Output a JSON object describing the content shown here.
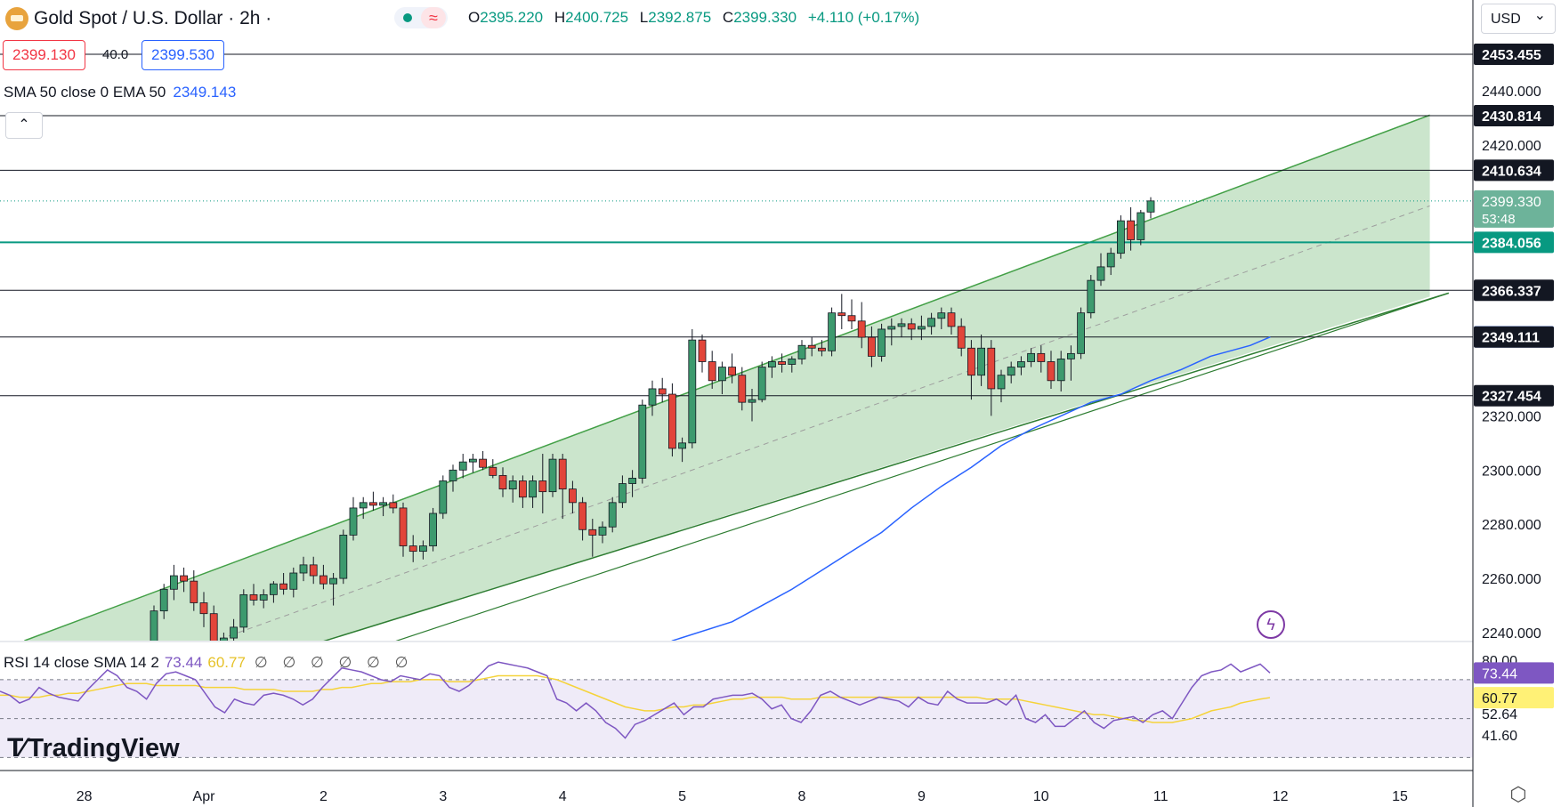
{
  "header": {
    "symbol_title": "Gold Spot / U.S. Dollar · 2h ·",
    "ohlc": {
      "open_label": "O",
      "open": "2395.220",
      "high_label": "H",
      "high": "2400.725",
      "low_label": "L",
      "low": "2392.875",
      "close_label": "C",
      "close": "2399.330",
      "change": "+4.110 (+0.17%)"
    },
    "sell_price": "2399.130",
    "spread": "40.0",
    "buy_price": "2399.530",
    "indicator_label": "SMA 50 close 0 EMA 50",
    "indicator_value": "2349.143",
    "currency": "USD"
  },
  "rsi": {
    "label": "RSI 14 close SMA 14 2",
    "value": "73.44",
    "sma_value": "60.77",
    "empty_values": "∅ ∅ ∅ ∅ ∅ ∅",
    "axis": [
      "80.00",
      "52.64",
      "41.60"
    ],
    "tags": {
      "rsi": "73.44",
      "sma": "60.77"
    },
    "series": [
      64,
      62,
      58,
      60,
      66,
      63,
      61,
      60,
      59,
      65,
      70,
      75,
      72,
      66,
      64,
      60,
      68,
      73,
      74,
      72,
      70,
      63,
      56,
      53,
      60,
      58,
      57,
      62,
      63,
      62,
      60,
      57,
      60,
      66,
      71,
      76,
      75,
      74,
      72,
      70,
      69,
      72,
      71,
      70,
      73,
      72,
      66,
      64,
      67,
      72,
      77,
      79,
      78,
      77,
      76,
      74,
      72,
      60,
      58,
      54,
      58,
      54,
      48,
      45,
      40,
      47,
      49,
      52,
      55,
      58,
      52,
      56,
      56,
      60,
      61,
      62,
      62,
      63,
      60,
      55,
      57,
      50,
      48,
      54,
      62,
      64,
      61,
      59,
      57,
      59,
      61,
      60,
      59,
      56,
      61,
      58,
      57,
      64,
      60,
      58,
      58,
      58,
      60,
      57,
      62,
      50,
      48,
      52,
      46,
      46,
      50,
      54,
      48,
      45,
      49,
      50,
      51,
      48,
      52,
      54,
      50,
      58,
      66,
      72,
      74,
      75,
      78,
      74,
      76,
      78,
      73.44
    ],
    "sma_series": [
      62,
      62,
      61,
      61,
      61,
      62,
      62,
      63,
      63,
      64,
      65,
      66,
      67,
      68,
      68,
      68,
      67,
      67,
      67,
      67,
      67,
      66,
      66,
      66,
      66,
      65,
      65,
      65,
      65,
      64,
      64,
      64,
      64,
      65,
      65,
      66,
      66,
      67,
      68,
      68,
      69,
      69,
      69,
      70,
      70,
      70,
      69,
      69,
      69,
      70,
      71,
      72,
      72,
      72,
      72,
      72,
      71,
      70,
      68,
      66,
      64,
      62,
      60,
      58,
      56,
      55,
      54,
      54,
      55,
      56,
      56,
      57,
      57,
      58,
      59,
      60,
      60,
      61,
      61,
      61,
      61,
      60,
      60,
      60,
      61,
      61,
      61,
      61,
      61,
      61,
      61,
      61,
      61,
      61,
      61,
      61,
      61,
      61,
      61,
      61,
      61,
      60,
      60,
      60,
      60,
      59,
      58,
      57,
      56,
      55,
      54,
      53,
      52,
      52,
      51,
      50,
      49,
      49,
      48,
      48,
      48,
      49,
      50,
      52,
      54,
      55,
      56,
      58,
      59,
      60,
      60.77
    ]
  },
  "chart_data": {
    "type": "candlestick",
    "title": "Gold Spot / U.S. Dollar · 2h",
    "ylim": [
      2232,
      2458
    ],
    "y_ticks": [
      "2440.000",
      "2420.000",
      "2320.000",
      "2300.000",
      "2280.000",
      "2260.000",
      "2240.000"
    ],
    "x_ticks": [
      {
        "label": "28",
        "i": -7
      },
      {
        "label": "Apr",
        "i": 5
      },
      {
        "label": "2",
        "i": 17
      },
      {
        "label": "3",
        "i": 29
      },
      {
        "label": "4",
        "i": 41
      },
      {
        "label": "5",
        "i": 53
      },
      {
        "label": "8",
        "i": 65
      },
      {
        "label": "9",
        "i": 77
      },
      {
        "label": "10",
        "i": 89
      },
      {
        "label": "11",
        "i": 101
      },
      {
        "label": "12",
        "i": 113
      },
      {
        "label": "15",
        "i": 125
      }
    ],
    "candles": [
      [
        2233,
        2250,
        2230,
        2248
      ],
      [
        2248,
        2258,
        2245,
        2256
      ],
      [
        2256,
        2265,
        2252,
        2261
      ],
      [
        2261,
        2264,
        2255,
        2259
      ],
      [
        2259,
        2263,
        2248,
        2251
      ],
      [
        2251,
        2255,
        2242,
        2247
      ],
      [
        2247,
        2250,
        2233,
        2235
      ],
      [
        2235,
        2240,
        2230,
        2238
      ],
      [
        2238,
        2245,
        2236,
        2242
      ],
      [
        2242,
        2256,
        2240,
        2254
      ],
      [
        2254,
        2258,
        2250,
        2252
      ],
      [
        2252,
        2256,
        2249,
        2254
      ],
      [
        2254,
        2259,
        2251,
        2258
      ],
      [
        2258,
        2262,
        2254,
        2256
      ],
      [
        2256,
        2264,
        2253,
        2262
      ],
      [
        2262,
        2268,
        2259,
        2265
      ],
      [
        2265,
        2268,
        2258,
        2261
      ],
      [
        2261,
        2265,
        2256,
        2258
      ],
      [
        2258,
        2262,
        2250,
        2260
      ],
      [
        2260,
        2278,
        2258,
        2276
      ],
      [
        2276,
        2290,
        2274,
        2286
      ],
      [
        2286,
        2290,
        2282,
        2288
      ],
      [
        2288,
        2292,
        2285,
        2287
      ],
      [
        2287,
        2290,
        2283,
        2288
      ],
      [
        2288,
        2291,
        2284,
        2286
      ],
      [
        2286,
        2288,
        2268,
        2272
      ],
      [
        2272,
        2276,
        2266,
        2270
      ],
      [
        2270,
        2274,
        2267,
        2272
      ],
      [
        2272,
        2286,
        2270,
        2284
      ],
      [
        2284,
        2298,
        2282,
        2296
      ],
      [
        2296,
        2302,
        2292,
        2300
      ],
      [
        2300,
        2306,
        2297,
        2303
      ],
      [
        2303,
        2306,
        2299,
        2304
      ],
      [
        2304,
        2307,
        2300,
        2301
      ],
      [
        2301,
        2304,
        2297,
        2298
      ],
      [
        2298,
        2301,
        2290,
        2293
      ],
      [
        2293,
        2298,
        2288,
        2296
      ],
      [
        2296,
        2298,
        2286,
        2290
      ],
      [
        2290,
        2298,
        2286,
        2296
      ],
      [
        2296,
        2306,
        2284,
        2292
      ],
      [
        2292,
        2306,
        2290,
        2304
      ],
      [
        2304,
        2306,
        2282,
        2293
      ],
      [
        2293,
        2296,
        2284,
        2288
      ],
      [
        2288,
        2290,
        2274,
        2278
      ],
      [
        2278,
        2282,
        2268,
        2276
      ],
      [
        2276,
        2281,
        2273,
        2279
      ],
      [
        2279,
        2290,
        2277,
        2288
      ],
      [
        2288,
        2298,
        2286,
        2295
      ],
      [
        2295,
        2300,
        2290,
        2297
      ],
      [
        2297,
        2326,
        2295,
        2324
      ],
      [
        2324,
        2333,
        2320,
        2330
      ],
      [
        2330,
        2334,
        2325,
        2328
      ],
      [
        2328,
        2332,
        2305,
        2308
      ],
      [
        2308,
        2312,
        2303,
        2310
      ],
      [
        2310,
        2352,
        2308,
        2348
      ],
      [
        2348,
        2350,
        2336,
        2340
      ],
      [
        2340,
        2344,
        2330,
        2333
      ],
      [
        2333,
        2340,
        2328,
        2338
      ],
      [
        2338,
        2343,
        2332,
        2335
      ],
      [
        2335,
        2338,
        2322,
        2325
      ],
      [
        2325,
        2330,
        2318,
        2326
      ],
      [
        2326,
        2340,
        2325,
        2338
      ],
      [
        2338,
        2342,
        2334,
        2340
      ],
      [
        2340,
        2343,
        2336,
        2339
      ],
      [
        2339,
        2342,
        2336,
        2341
      ],
      [
        2341,
        2348,
        2339,
        2346
      ],
      [
        2346,
        2349,
        2342,
        2345
      ],
      [
        2345,
        2348,
        2342,
        2344
      ],
      [
        2344,
        2360,
        2342,
        2358
      ],
      [
        2358,
        2365,
        2352,
        2357
      ],
      [
        2357,
        2363,
        2352,
        2355
      ],
      [
        2355,
        2362,
        2345,
        2349
      ],
      [
        2349,
        2353,
        2338,
        2342
      ],
      [
        2342,
        2354,
        2340,
        2352
      ],
      [
        2352,
        2356,
        2346,
        2353
      ],
      [
        2353,
        2356,
        2349,
        2354
      ],
      [
        2354,
        2356,
        2348,
        2352
      ],
      [
        2352,
        2357,
        2348,
        2353
      ],
      [
        2353,
        2358,
        2350,
        2356
      ],
      [
        2356,
        2360,
        2352,
        2358
      ],
      [
        2358,
        2360,
        2350,
        2353
      ],
      [
        2353,
        2356,
        2342,
        2345
      ],
      [
        2345,
        2348,
        2326,
        2335
      ],
      [
        2335,
        2350,
        2331,
        2345
      ],
      [
        2345,
        2348,
        2320,
        2330
      ],
      [
        2330,
        2337,
        2325,
        2335
      ],
      [
        2335,
        2340,
        2332,
        2338
      ],
      [
        2338,
        2342,
        2335,
        2340
      ],
      [
        2340,
        2345,
        2338,
        2343
      ],
      [
        2343,
        2346,
        2336,
        2340
      ],
      [
        2340,
        2344,
        2330,
        2333
      ],
      [
        2333,
        2344,
        2329,
        2341
      ],
      [
        2341,
        2346,
        2333,
        2343
      ],
      [
        2343,
        2360,
        2341,
        2358
      ],
      [
        2358,
        2372,
        2356,
        2370
      ],
      [
        2370,
        2380,
        2368,
        2375
      ],
      [
        2375,
        2382,
        2372,
        2380
      ],
      [
        2380,
        2394,
        2378,
        2392
      ],
      [
        2392,
        2397,
        2381,
        2385
      ],
      [
        2385,
        2396,
        2383,
        2395
      ],
      [
        2395.22,
        2400.725,
        2392.875,
        2399.33
      ]
    ],
    "ema50": [
      [
        44,
        2218
      ],
      [
        52,
        2237
      ],
      [
        58,
        2244
      ],
      [
        61,
        2250
      ],
      [
        64,
        2256
      ],
      [
        67,
        2263
      ],
      [
        70,
        2270
      ],
      [
        73,
        2277
      ],
      [
        76,
        2286
      ],
      [
        79,
        2294
      ],
      [
        82,
        2301
      ],
      [
        85,
        2309
      ],
      [
        88,
        2315
      ],
      [
        91,
        2320
      ],
      [
        94,
        2325
      ],
      [
        97,
        2328
      ],
      [
        100,
        2333
      ],
      [
        103,
        2337
      ],
      [
        106,
        2342
      ],
      [
        108,
        2344
      ],
      [
        110,
        2346
      ],
      [
        112,
        2349.143
      ]
    ],
    "channel": {
      "upper_start": [
        -13,
        2237
      ],
      "upper_end": [
        128,
        2431
      ],
      "lower_start": [
        4,
        2222
      ],
      "lower_end": [
        129,
        2364
      ]
    },
    "levels": [
      {
        "value": 2453.455,
        "label": "2453.455",
        "color": "#131722"
      },
      {
        "value": 2430.814,
        "label": "2430.814",
        "color": "#131722"
      },
      {
        "value": 2410.634,
        "label": "2410.634",
        "color": "#131722"
      },
      {
        "value": 2384.056,
        "label": "2384.056",
        "color": "#089981"
      },
      {
        "value": 2366.337,
        "label": "2366.337",
        "color": "#131722"
      },
      {
        "value": 2349.143,
        "label": "2349.143",
        "color": "#2962ff"
      },
      {
        "value": 2349.111,
        "label": "2349.111",
        "color": "#131722"
      },
      {
        "value": 2327.454,
        "label": "2327.454",
        "color": "#131722"
      }
    ],
    "last_price": "2399.330",
    "countdown": "53:48",
    "up_color": "#089981",
    "down_color": "#f23645",
    "channel_color": "#43a047",
    "ema_color": "#2962ff"
  },
  "branding": "TradingView"
}
